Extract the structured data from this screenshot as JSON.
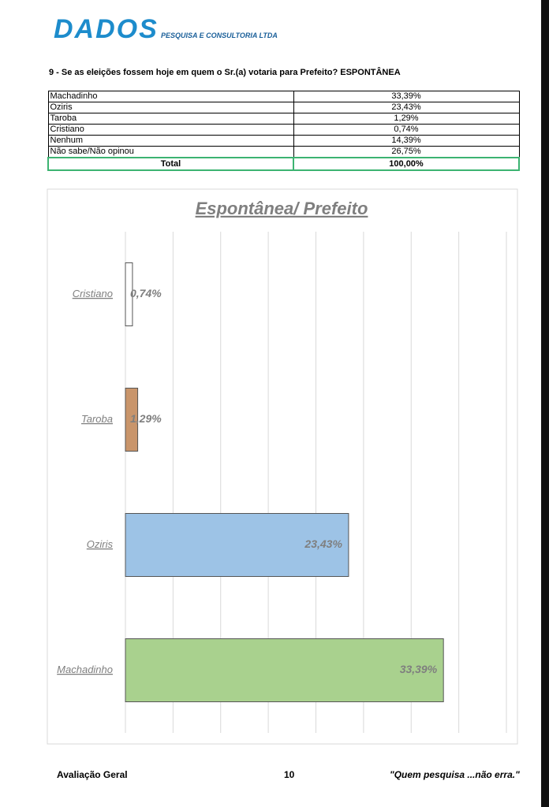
{
  "header": {
    "logo": "DADOS",
    "subtitle": "PESQUISA E CONSULTORIA LTDA"
  },
  "question": "9 - Se as eleições fossem hoje em quem o Sr.(a) votaria para Prefeito? ESPONTÂNEA",
  "table": {
    "rows": [
      [
        "Machadinho",
        "33,39%"
      ],
      [
        "Oziris",
        "23,43%"
      ],
      [
        "Taroba",
        "1,29%"
      ],
      [
        "Cristiano",
        "0,74%"
      ],
      [
        "Nenhum",
        "14,39%"
      ],
      [
        "Não sabe/Não opinou",
        "26,75%"
      ]
    ],
    "total": [
      "Total",
      "100,00%"
    ]
  },
  "chart_data": {
    "type": "hbar",
    "title": "Espontânea/ Prefeito",
    "categories": [
      "Cristiano",
      "Taroba",
      "Oziris",
      "Machadinho"
    ],
    "values": [
      0.74,
      1.29,
      23.43,
      33.39
    ],
    "value_labels": [
      "0,74%",
      "1,29%",
      "23,43%",
      "33,39%"
    ],
    "colors": [
      "#ffffff",
      "#c9956b",
      "#9dc3e6",
      "#a9d18e"
    ],
    "xlim": [
      0,
      40
    ],
    "xticks": [
      0,
      5,
      10,
      15,
      20,
      25,
      30,
      35,
      40
    ],
    "xtick_labels": false,
    "grid": true
  },
  "footer": {
    "left": "Avaliação Geral",
    "page": "10",
    "right": "\"Quem pesquisa ...não erra.\""
  }
}
